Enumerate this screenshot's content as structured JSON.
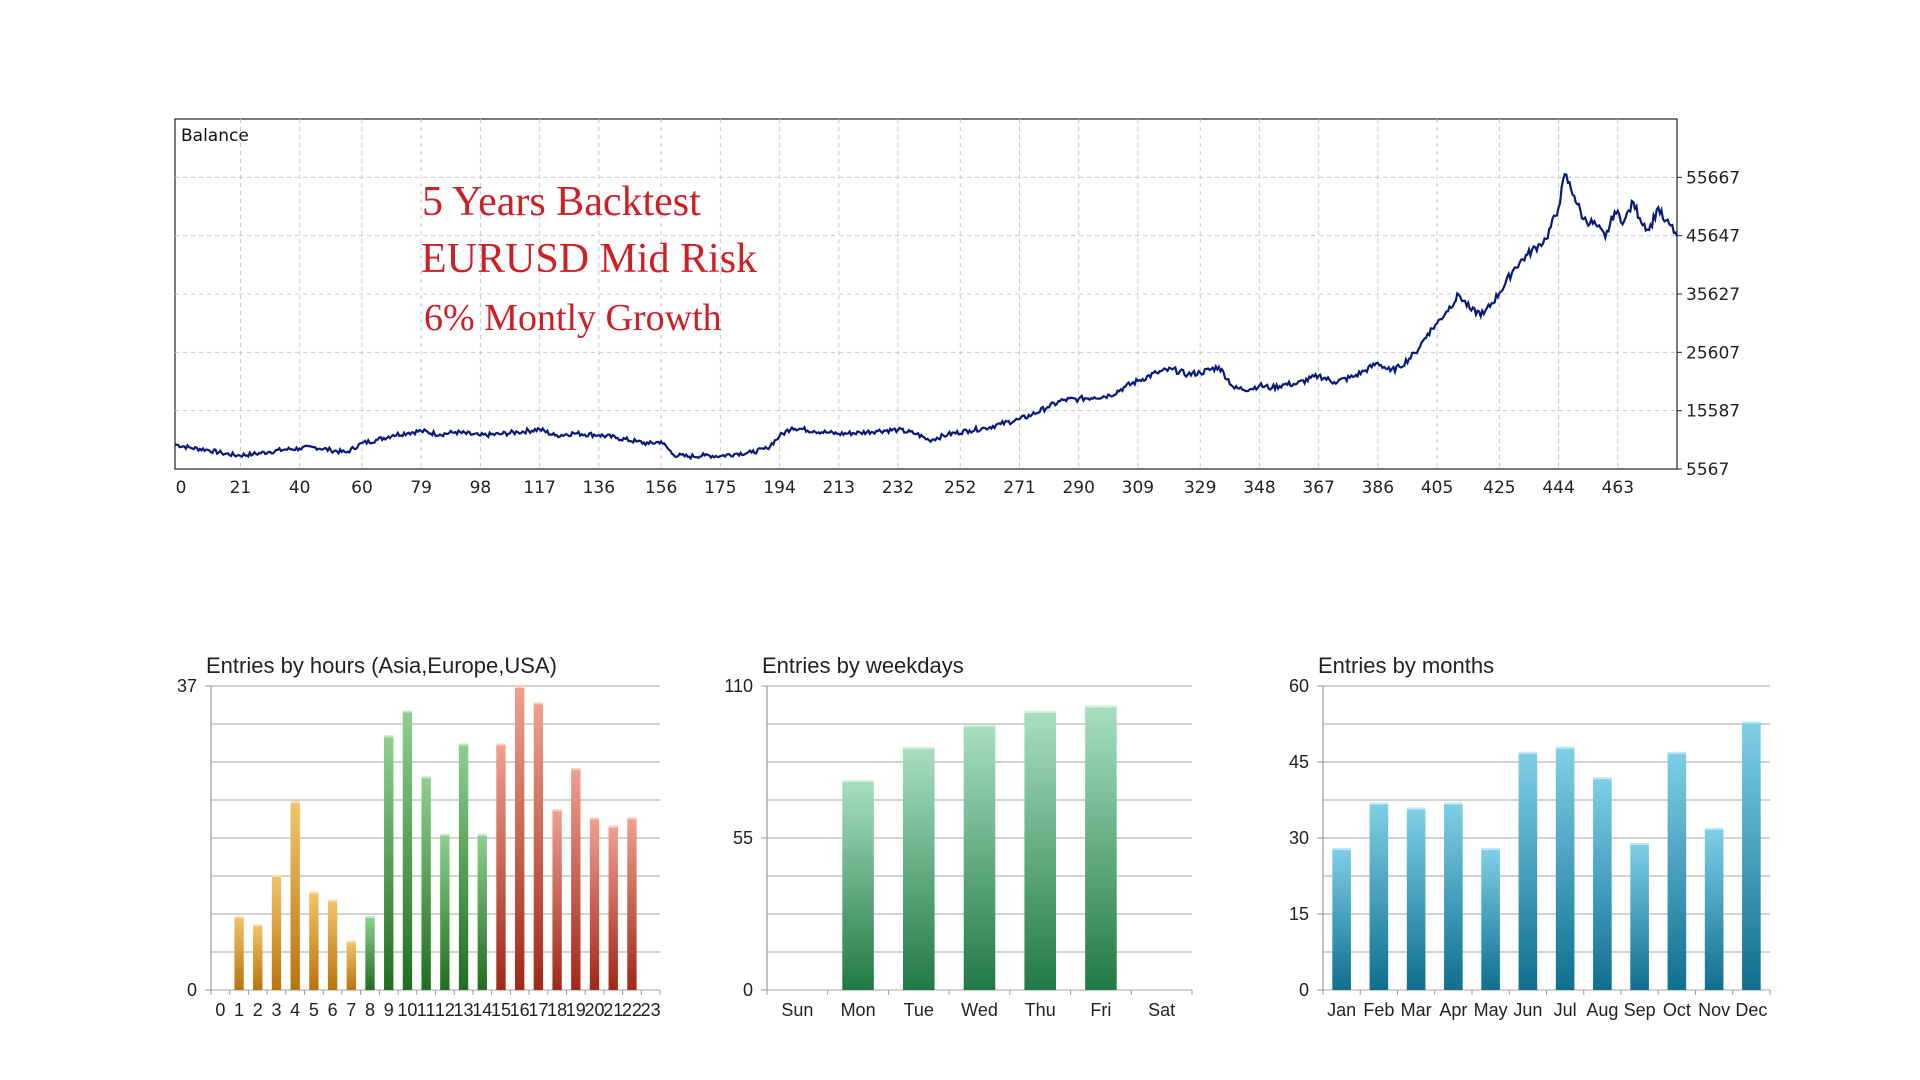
{
  "chart_data": [
    {
      "type": "line",
      "title": "Balance",
      "annotations": [
        "5 Years Backtest",
        "EURUSD Mid Risk",
        "6% Montly Growth"
      ],
      "xticks": [
        0,
        21,
        40,
        60,
        79,
        98,
        117,
        136,
        156,
        175,
        194,
        213,
        232,
        252,
        271,
        290,
        309,
        329,
        348,
        367,
        386,
        405,
        425,
        444,
        463
      ],
      "yticks": [
        55667,
        45647,
        35627,
        25607,
        15587,
        5567
      ],
      "xlim": [
        0,
        482
      ],
      "ylim": [
        5567,
        65687
      ],
      "grid": true,
      "line_color": "#0a1a78",
      "series": [
        {
          "x": [
            0,
            5,
            10,
            15,
            20,
            25,
            30,
            35,
            40,
            45,
            50,
            55,
            60,
            65,
            70,
            75,
            79,
            85,
            90,
            98,
            105,
            110,
            117,
            122,
            128,
            136,
            142,
            148,
            152,
            156,
            160,
            165,
            170,
            175,
            180,
            185,
            190,
            194,
            198,
            205,
            210,
            213,
            220,
            225,
            232,
            238,
            242,
            248,
            255,
            260,
            265,
            271,
            275,
            280,
            285,
            290,
            295,
            300,
            305,
            309,
            315,
            320,
            325,
            329,
            335,
            340,
            345,
            348,
            352,
            356,
            360,
            367,
            372,
            378,
            382,
            386,
            390,
            393,
            398,
            402,
            405,
            408,
            412,
            416,
            420,
            425,
            430,
            434,
            438,
            440,
            444,
            446,
            449,
            452,
            456,
            459,
            462,
            465,
            468,
            470,
            473,
            476,
            478,
            480,
            482
          ],
          "y": [
            9800,
            9200,
            8900,
            8300,
            7900,
            8100,
            8500,
            8900,
            9100,
            9300,
            8800,
            8400,
            10000,
            10600,
            11400,
            11800,
            12100,
            11500,
            11900,
            11300,
            11600,
            11900,
            12400,
            11300,
            11700,
            11400,
            10900,
            10300,
            9900,
            10300,
            8000,
            7700,
            7900,
            7800,
            8200,
            8400,
            9100,
            11200,
            12700,
            12100,
            11800,
            11600,
            11800,
            12100,
            12300,
            11600,
            10500,
            11500,
            12200,
            12600,
            13300,
            14100,
            14900,
            16200,
            17400,
            17600,
            17900,
            18200,
            19700,
            20700,
            22100,
            22700,
            21800,
            22100,
            23100,
            19400,
            19300,
            19900,
            19500,
            20100,
            20200,
            21600,
            20500,
            21400,
            22500,
            23800,
            22400,
            23100,
            25500,
            28800,
            30600,
            32600,
            35500,
            32800,
            32200,
            35800,
            40200,
            42400,
            44200,
            45100,
            50500,
            56200,
            52500,
            48500,
            47500,
            45300,
            49800,
            48100,
            51400,
            48700,
            46600,
            50500,
            48100,
            47400,
            45600
          ]
        }
      ]
    },
    {
      "type": "bar",
      "title": "Entries by hours (Asia,Europe,USA)",
      "categories": [
        "0",
        "1",
        "2",
        "3",
        "4",
        "5",
        "6",
        "7",
        "8",
        "9",
        "10",
        "11",
        "12",
        "13",
        "14",
        "15",
        "16",
        "17",
        "18",
        "19",
        "20",
        "21",
        "22",
        "23"
      ],
      "values": [
        0,
        9,
        8,
        14,
        23,
        12,
        11,
        6,
        9,
        31,
        34,
        26,
        19,
        30,
        19,
        30,
        37,
        35,
        22,
        27,
        21,
        20,
        21,
        0
      ],
      "ylim": [
        0,
        37
      ],
      "yticks": [
        0,
        37
      ],
      "region_colors": {
        "asia": "#c98a1b",
        "europe": "#3b8f3b",
        "usa": "#c64a3a"
      }
    },
    {
      "type": "bar",
      "title": "Entries by weekdays",
      "categories": [
        "Sun",
        "Mon",
        "Tue",
        "Wed",
        "Thu",
        "Fri",
        "Sat"
      ],
      "values": [
        0,
        76,
        88,
        96,
        101,
        103,
        0
      ],
      "ylim": [
        0,
        110
      ],
      "yticks": [
        0,
        55,
        110
      ],
      "bar_color": "#2e8b57"
    },
    {
      "type": "bar",
      "title": "Entries by months",
      "categories": [
        "Jan",
        "Feb",
        "Mar",
        "Apr",
        "May",
        "Jun",
        "Jul",
        "Aug",
        "Sep",
        "Oct",
        "Nov",
        "Dec"
      ],
      "values": [
        28,
        37,
        36,
        37,
        28,
        47,
        48,
        42,
        29,
        47,
        32,
        53
      ],
      "ylim": [
        0,
        60
      ],
      "yticks": [
        0,
        15,
        30,
        45,
        60
      ],
      "bar_color": "#1f8aa8"
    }
  ]
}
